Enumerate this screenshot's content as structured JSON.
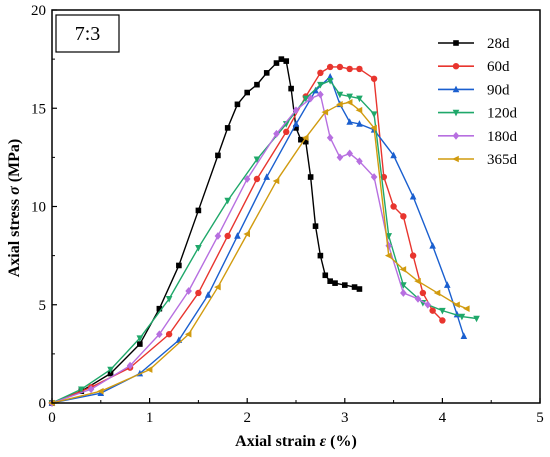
{
  "chart_data": {
    "type": "line",
    "panel_label": "7:3",
    "xlabel_pre": "Axial strain ",
    "xlabel_sym": "ε",
    "xlabel_post": " (%)",
    "ylabel_pre": "Axial stress ",
    "ylabel_sym": "σ",
    "ylabel_post": " (MPa)",
    "xlim": [
      0,
      5
    ],
    "ylim": [
      0,
      20
    ],
    "xticks": [
      "0",
      "1",
      "2",
      "3",
      "4",
      "5"
    ],
    "yticks": [
      "0",
      "5",
      "10",
      "15",
      "20"
    ],
    "legend_position": "top-right",
    "series": [
      {
        "name": "28d",
        "color": "#000000",
        "marker": "square",
        "x": [
          0,
          0.3,
          0.6,
          0.9,
          1.1,
          1.3,
          1.5,
          1.7,
          1.8,
          1.9,
          2.0,
          2.1,
          2.2,
          2.3,
          2.35,
          2.4,
          2.45,
          2.5,
          2.55,
          2.6,
          2.65,
          2.7,
          2.75,
          2.8,
          2.85,
          2.9,
          3.0,
          3.1,
          3.15
        ],
        "y": [
          0,
          0.6,
          1.5,
          3.0,
          4.8,
          7.0,
          9.8,
          12.6,
          14.0,
          15.2,
          15.8,
          16.2,
          16.8,
          17.3,
          17.5,
          17.4,
          16.0,
          14.0,
          13.4,
          13.3,
          11.5,
          9.0,
          7.5,
          6.5,
          6.2,
          6.1,
          6.0,
          5.9,
          5.8
        ]
      },
      {
        "name": "60d",
        "color": "#e8352e",
        "marker": "circle",
        "x": [
          0,
          0.4,
          0.8,
          1.2,
          1.5,
          1.8,
          2.1,
          2.4,
          2.6,
          2.75,
          2.85,
          2.95,
          3.05,
          3.15,
          3.3,
          3.4,
          3.5,
          3.6,
          3.7,
          3.8,
          3.9,
          4.0
        ],
        "y": [
          0,
          0.8,
          1.8,
          3.5,
          5.6,
          8.5,
          11.4,
          13.8,
          15.6,
          16.8,
          17.1,
          17.1,
          17.0,
          17.0,
          16.5,
          11.5,
          10.0,
          9.5,
          7.5,
          5.6,
          4.7,
          4.2
        ]
      },
      {
        "name": "90d",
        "color": "#1a5fcf",
        "marker": "triangle-up",
        "x": [
          0,
          0.5,
          0.9,
          1.3,
          1.6,
          1.9,
          2.2,
          2.5,
          2.7,
          2.85,
          2.95,
          3.05,
          3.15,
          3.3,
          3.5,
          3.7,
          3.9,
          4.05,
          4.15,
          4.22
        ],
        "y": [
          0,
          0.5,
          1.5,
          3.2,
          5.5,
          8.5,
          11.5,
          14.2,
          15.9,
          16.6,
          15.2,
          14.3,
          14.2,
          13.9,
          12.6,
          10.5,
          8.0,
          6.0,
          4.5,
          3.4
        ]
      },
      {
        "name": "120d",
        "color": "#1fa86a",
        "marker": "triangle-down",
        "x": [
          0,
          0.3,
          0.6,
          0.9,
          1.2,
          1.5,
          1.8,
          2.1,
          2.4,
          2.6,
          2.75,
          2.85,
          2.95,
          3.05,
          3.15,
          3.3,
          3.45,
          3.6,
          3.8,
          4.0,
          4.2,
          4.35
        ],
        "y": [
          0,
          0.7,
          1.7,
          3.3,
          5.3,
          7.9,
          10.3,
          12.4,
          14.2,
          15.5,
          16.2,
          16.4,
          15.7,
          15.6,
          15.5,
          14.7,
          8.5,
          6.0,
          5.1,
          4.7,
          4.4,
          4.3
        ]
      },
      {
        "name": "180d",
        "color": "#b76fe0",
        "marker": "diamond",
        "x": [
          0,
          0.4,
          0.8,
          1.1,
          1.4,
          1.7,
          2.0,
          2.3,
          2.5,
          2.65,
          2.75,
          2.85,
          2.95,
          3.05,
          3.15,
          3.3,
          3.45,
          3.6,
          3.75,
          3.85
        ],
        "y": [
          0,
          0.7,
          1.9,
          3.5,
          5.7,
          8.5,
          11.4,
          13.7,
          14.9,
          15.5,
          15.7,
          13.5,
          12.5,
          12.7,
          12.3,
          11.5,
          8.0,
          5.6,
          5.3,
          5.0
        ]
      },
      {
        "name": "365d",
        "color": "#d19b0f",
        "marker": "triangle-left",
        "x": [
          0,
          0.5,
          1.0,
          1.4,
          1.7,
          2.0,
          2.3,
          2.6,
          2.8,
          2.95,
          3.05,
          3.15,
          3.3,
          3.45,
          3.6,
          3.75,
          3.95,
          4.15,
          4.25
        ],
        "y": [
          0,
          0.6,
          1.7,
          3.5,
          5.9,
          8.6,
          11.3,
          13.5,
          14.8,
          15.2,
          15.3,
          14.9,
          14.0,
          7.5,
          6.8,
          6.2,
          5.6,
          5.0,
          4.8
        ]
      }
    ]
  }
}
